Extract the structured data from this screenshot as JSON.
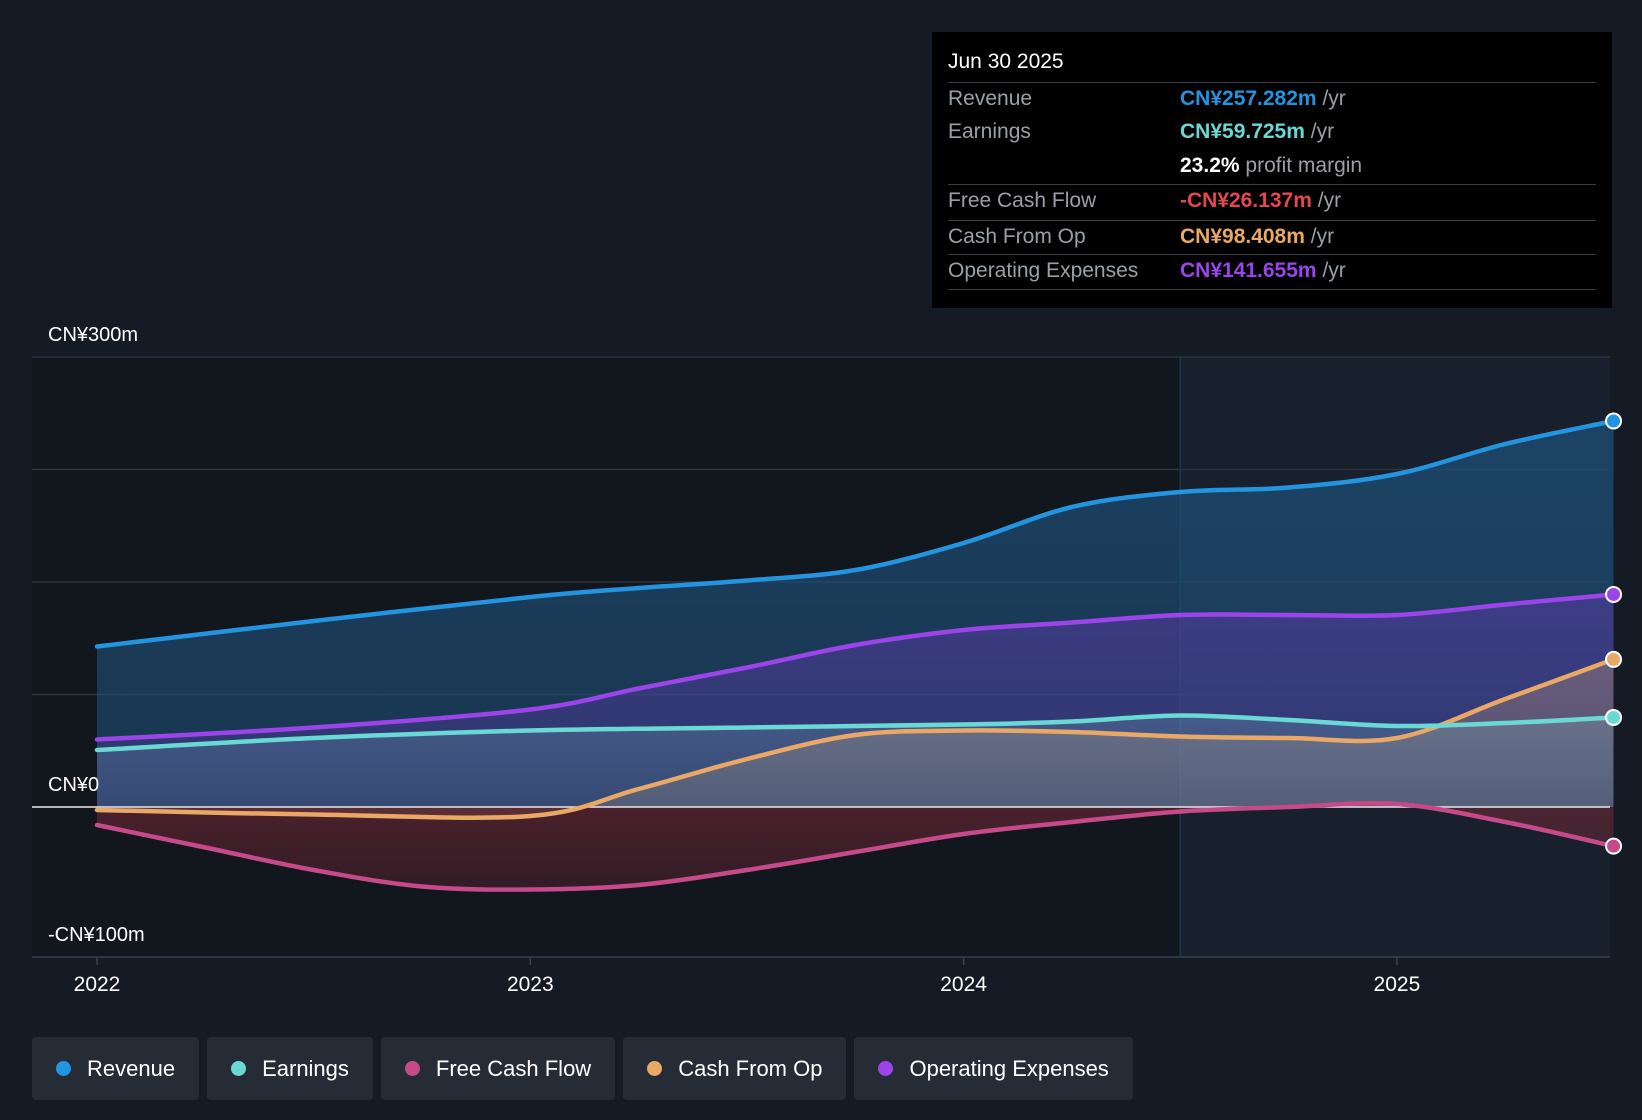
{
  "chart_data": {
    "type": "area",
    "x_ticks": [
      "2022",
      "2023",
      "2024",
      "2025"
    ],
    "y_ticks": [
      {
        "value": 300,
        "label": "CN¥300m"
      },
      {
        "value": 0,
        "label": "CN¥0"
      },
      {
        "value": -100,
        "label": "-CN¥100m"
      }
    ],
    "ylim": [
      -100,
      300
    ],
    "x_range": [
      2021.85,
      2025.5
    ],
    "forecast_shade_from": 2024.5,
    "series": [
      {
        "name": "Revenue",
        "color": "#2394df",
        "x": [
          2022.0,
          2022.5,
          2023.0,
          2023.25,
          2023.5,
          2023.75,
          2024.0,
          2024.25,
          2024.5,
          2024.75,
          2025.0,
          2025.25,
          2025.5
        ],
        "y": [
          107,
          124,
          140,
          146,
          151,
          158,
          176,
          200,
          210,
          213,
          222,
          242,
          257.3
        ]
      },
      {
        "name": "Earnings",
        "color": "#6ad9d5",
        "x": [
          2022.0,
          2022.5,
          2023.0,
          2023.5,
          2024.0,
          2024.25,
          2024.5,
          2024.75,
          2025.0,
          2025.25,
          2025.5
        ],
        "y": [
          38,
          46,
          51,
          53,
          55,
          57,
          61,
          58,
          54,
          56,
          59.7
        ]
      },
      {
        "name": "Free Cash Flow",
        "color": "#c64a8a",
        "x": [
          2022.0,
          2022.25,
          2022.5,
          2022.75,
          2023.0,
          2023.25,
          2023.5,
          2023.75,
          2024.0,
          2024.25,
          2024.5,
          2024.75,
          2025.0,
          2025.25,
          2025.5
        ],
        "y": [
          -12,
          -27,
          -42,
          -53,
          -55,
          -52,
          -42,
          -30,
          -18,
          -10,
          -3,
          0,
          2,
          -10,
          -26.1
        ]
      },
      {
        "name": "Cash From Op",
        "color": "#e9a865",
        "x": [
          2022.0,
          2022.5,
          2023.0,
          2023.25,
          2023.5,
          2023.75,
          2024.0,
          2024.25,
          2024.5,
          2024.75,
          2025.0,
          2025.25,
          2025.5
        ],
        "y": [
          -2,
          -5,
          -6,
          12,
          32,
          48,
          51,
          50,
          47,
          46,
          46,
          72,
          98.4
        ]
      },
      {
        "name": "Operating Expenses",
        "color": "#9b44ea",
        "x": [
          2022.0,
          2022.5,
          2023.0,
          2023.25,
          2023.5,
          2023.75,
          2024.0,
          2024.25,
          2024.5,
          2024.75,
          2025.0,
          2025.25,
          2025.5
        ],
        "y": [
          45,
          53,
          65,
          79,
          93,
          108,
          118,
          123,
          128,
          128,
          128,
          135,
          141.7
        ]
      }
    ]
  },
  "tooltip": {
    "date": "Jun 30 2025",
    "rows": [
      {
        "label": "Revenue",
        "value": "CN¥257.282m",
        "unit": "/yr",
        "color": "#2394df"
      },
      {
        "label": "Earnings",
        "value": "CN¥59.725m",
        "unit": "/yr",
        "color": "#6ad9d5"
      },
      {
        "label": "",
        "value": "23.2%",
        "unit": "profit margin",
        "color": "#ffffff"
      },
      {
        "label": "Free Cash Flow",
        "value": "-CN¥26.137m",
        "unit": "/yr",
        "color": "#e3484e"
      },
      {
        "label": "Cash From Op",
        "value": "CN¥98.408m",
        "unit": "/yr",
        "color": "#e9a865"
      },
      {
        "label": "Operating Expenses",
        "value": "CN¥141.655m",
        "unit": "/yr",
        "color": "#9b44ea"
      }
    ]
  },
  "legend": [
    {
      "label": "Revenue",
      "color": "#2394df"
    },
    {
      "label": "Earnings",
      "color": "#6ad9d5"
    },
    {
      "label": "Free Cash Flow",
      "color": "#c64a8a"
    },
    {
      "label": "Cash From Op",
      "color": "#e9a865"
    },
    {
      "label": "Operating Expenses",
      "color": "#9b44ea"
    }
  ]
}
